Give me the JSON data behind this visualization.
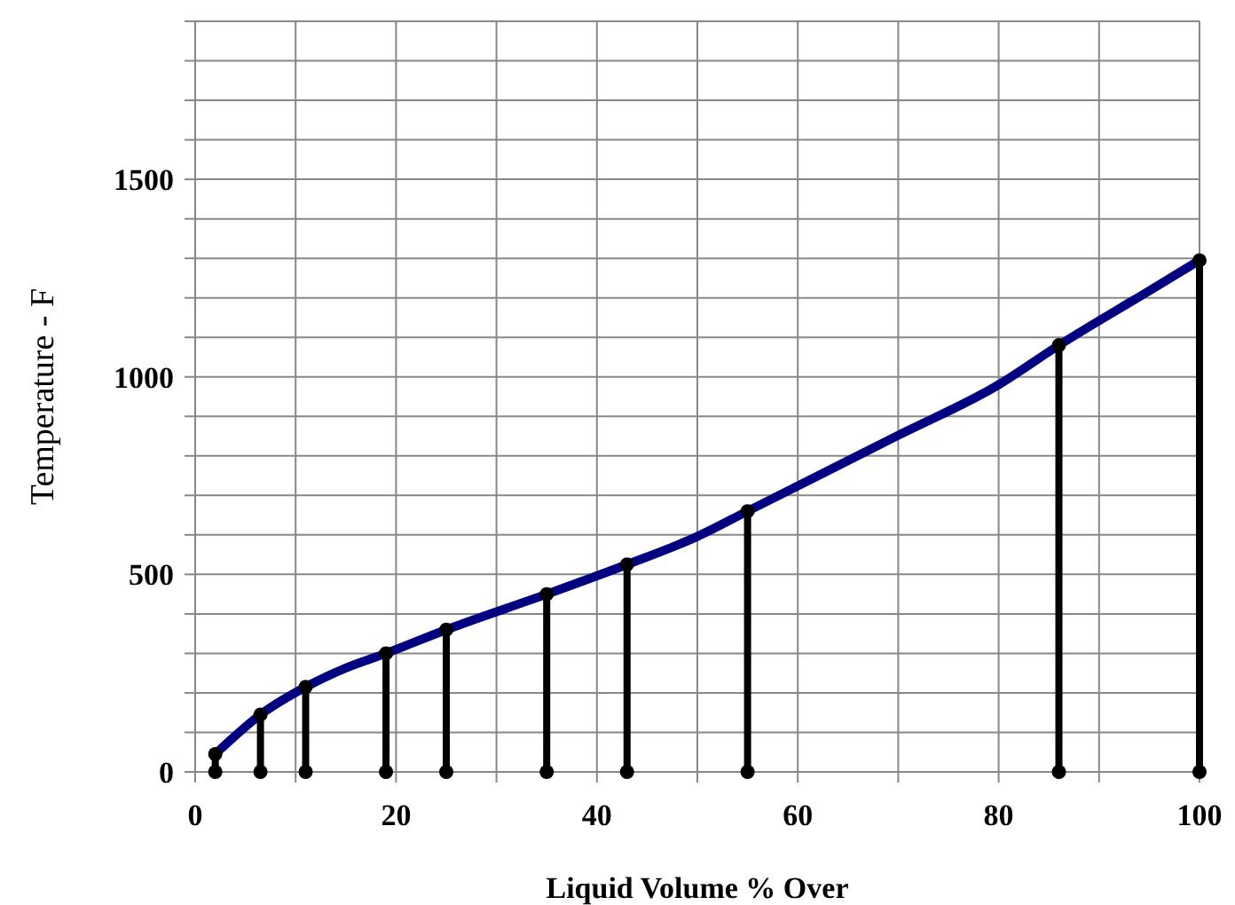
{
  "chart_data": {
    "type": "line",
    "xlabel": "Liquid Volume % Over",
    "ylabel": "Temperature - F",
    "xlim": [
      0,
      100
    ],
    "ylim": [
      0,
      1900
    ],
    "xticks": [
      0,
      {
        "value": 10,
        "label": null
      },
      20,
      {
        "value": 30,
        "label": null
      },
      40,
      {
        "value": 50,
        "label": null
      },
      60,
      {
        "value": 70,
        "label": null
      },
      80,
      {
        "value": 90,
        "label": null
      },
      100
    ],
    "yticks": [
      0,
      {
        "value": 100,
        "label": null
      },
      {
        "value": 200,
        "label": null
      },
      {
        "value": 300,
        "label": null
      },
      {
        "value": 400,
        "label": null
      },
      500,
      {
        "value": 600,
        "label": null
      },
      {
        "value": 700,
        "label": null
      },
      {
        "value": 800,
        "label": null
      },
      {
        "value": 900,
        "label": null
      },
      1000,
      {
        "value": 1100,
        "label": null
      },
      {
        "value": 1200,
        "label": null
      },
      {
        "value": 1300,
        "label": null
      },
      {
        "value": 1400,
        "label": null
      },
      1500,
      {
        "value": 1600,
        "label": null
      },
      {
        "value": 1700,
        "label": null
      },
      {
        "value": 1800,
        "label": null
      },
      {
        "value": 1900,
        "label": null
      }
    ],
    "grid": true,
    "series": [
      {
        "color": "#000080",
        "marker": "none",
        "x": [
          2,
          6.5,
          11,
          15,
          19,
          25,
          35,
          43,
          50,
          55,
          70,
          80,
          86,
          95,
          100
        ],
        "values": [
          45,
          145,
          215,
          263,
          300,
          360,
          450,
          525,
          596,
          660,
          852,
          980,
          1080,
          1218,
          1295
        ]
      },
      {
        "type": "scatter",
        "color": "#000000",
        "marker": "circle",
        "x": [
          2,
          6.5,
          11,
          19,
          25,
          35,
          43,
          55,
          86,
          100
        ],
        "values": [
          0,
          0,
          0,
          0,
          0,
          0,
          0,
          0,
          0,
          0
        ]
      },
      {
        "type": "lollipop",
        "color": "#000000",
        "marker": "circle",
        "x": [
          2,
          6.5,
          11,
          19,
          25,
          35,
          43,
          55,
          86,
          100
        ],
        "values": [
          45,
          145,
          215,
          300,
          360,
          450,
          525,
          660,
          1080,
          1295
        ]
      }
    ]
  }
}
